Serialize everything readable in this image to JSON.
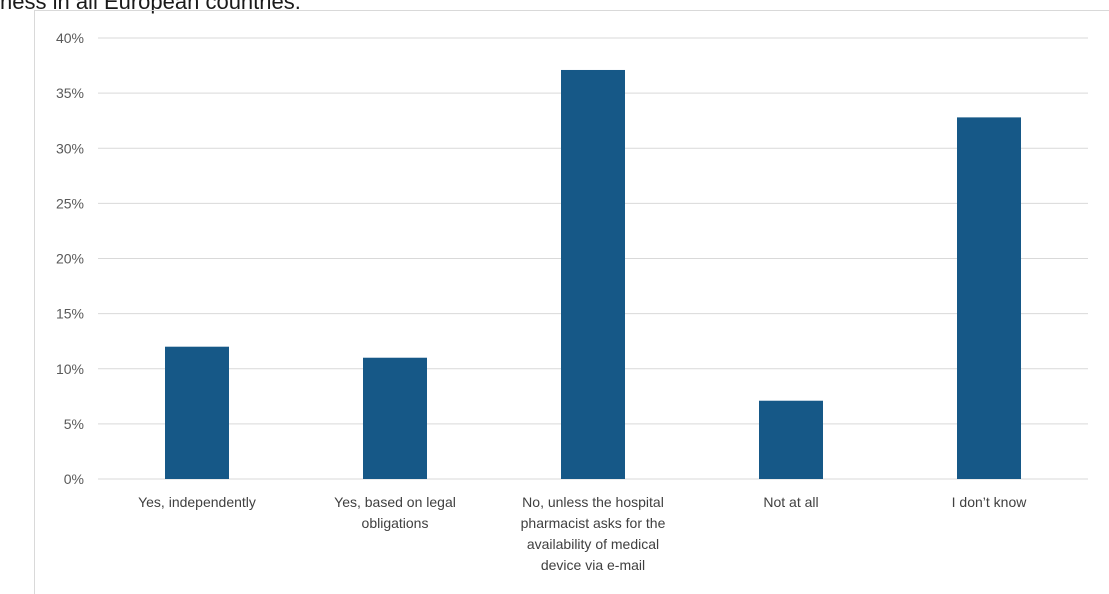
{
  "heading": "ness in all European countries.",
  "colors": {
    "bar": "#165887",
    "gridline": "#d9d9d9",
    "tick_text": "#595959"
  },
  "chart_data": {
    "type": "bar",
    "categories": [
      "Yes, independently",
      "Yes, based on legal obligations",
      "No, unless the hospital pharmacist asks for the availability of medical device via e-mail",
      "Not at all",
      "I don’t know"
    ],
    "category_lines": [
      [
        "Yes, independently"
      ],
      [
        "Yes, based on legal",
        "obligations"
      ],
      [
        "No, unless the hospital",
        "pharmacist asks for the",
        "availability of medical",
        "device via e-mail"
      ],
      [
        "Not at all"
      ],
      [
        "I don’t know"
      ]
    ],
    "values": [
      12,
      11,
      37.1,
      7.1,
      32.8
    ],
    "value_unit": "%",
    "yticks": [
      "0%",
      "5%",
      "10%",
      "15%",
      "20%",
      "25%",
      "30%",
      "35%",
      "40%"
    ],
    "ylim": [
      0,
      40
    ],
    "grid": true,
    "legend": "none"
  }
}
